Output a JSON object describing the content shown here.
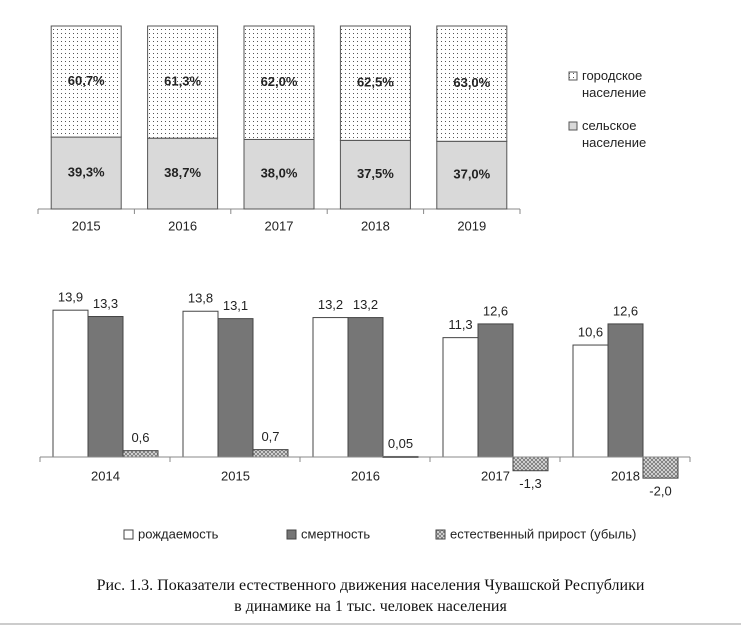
{
  "charts": [
    {
      "type": "stacked-bar",
      "categories": [
        "2015",
        "2016",
        "2017",
        "2018",
        "2019"
      ],
      "ylim": [
        0,
        100
      ],
      "series": [
        {
          "name": "сельское население",
          "color": "#d9d9d9",
          "pattern": "none",
          "values": [
            39.3,
            38.7,
            38.0,
            37.5,
            37.0
          ],
          "value_labels": [
            "39,3%",
            "38,7%",
            "38,0%",
            "37,5%",
            "37,0%"
          ]
        },
        {
          "name": "городское население",
          "color": "#ffffff",
          "pattern": "dots",
          "values": [
            60.7,
            61.3,
            62.0,
            62.5,
            63.0
          ],
          "value_labels": [
            "60,7%",
            "61,3%",
            "62,0%",
            "62,5%",
            "63,0%"
          ]
        }
      ]
    },
    {
      "type": "grouped-bar",
      "categories": [
        "2014",
        "2015",
        "2016",
        "2017",
        "2018"
      ],
      "ylim": [
        -3,
        16
      ],
      "series": [
        {
          "name": "рождаемость",
          "color": "#ffffff",
          "pattern": "none",
          "values": [
            13.9,
            13.8,
            13.2,
            11.3,
            10.6
          ],
          "value_labels": [
            "13,9",
            "13,8",
            "13,2",
            "11,3",
            "10,6"
          ]
        },
        {
          "name": "смертность",
          "color": "#767676",
          "pattern": "none",
          "values": [
            13.3,
            13.1,
            13.2,
            12.6,
            12.6
          ],
          "value_labels": [
            "13,3",
            "13,1",
            "13,2",
            "12,6",
            "12,6"
          ]
        },
        {
          "name": "естественный прирост (убыль)",
          "color": "#cfcfcf",
          "pattern": "hatch",
          "values": [
            0.6,
            0.7,
            0.05,
            -1.3,
            -2.0
          ],
          "value_labels": [
            "0,6",
            "0,7",
            "0,05",
            "-1,3",
            "-2,0"
          ]
        }
      ]
    }
  ],
  "caption": [
    "Рис. 1.3. Показатели естественного движения населения Чувашской Республики",
    "в динамике на 1 тыс. человек населения"
  ]
}
